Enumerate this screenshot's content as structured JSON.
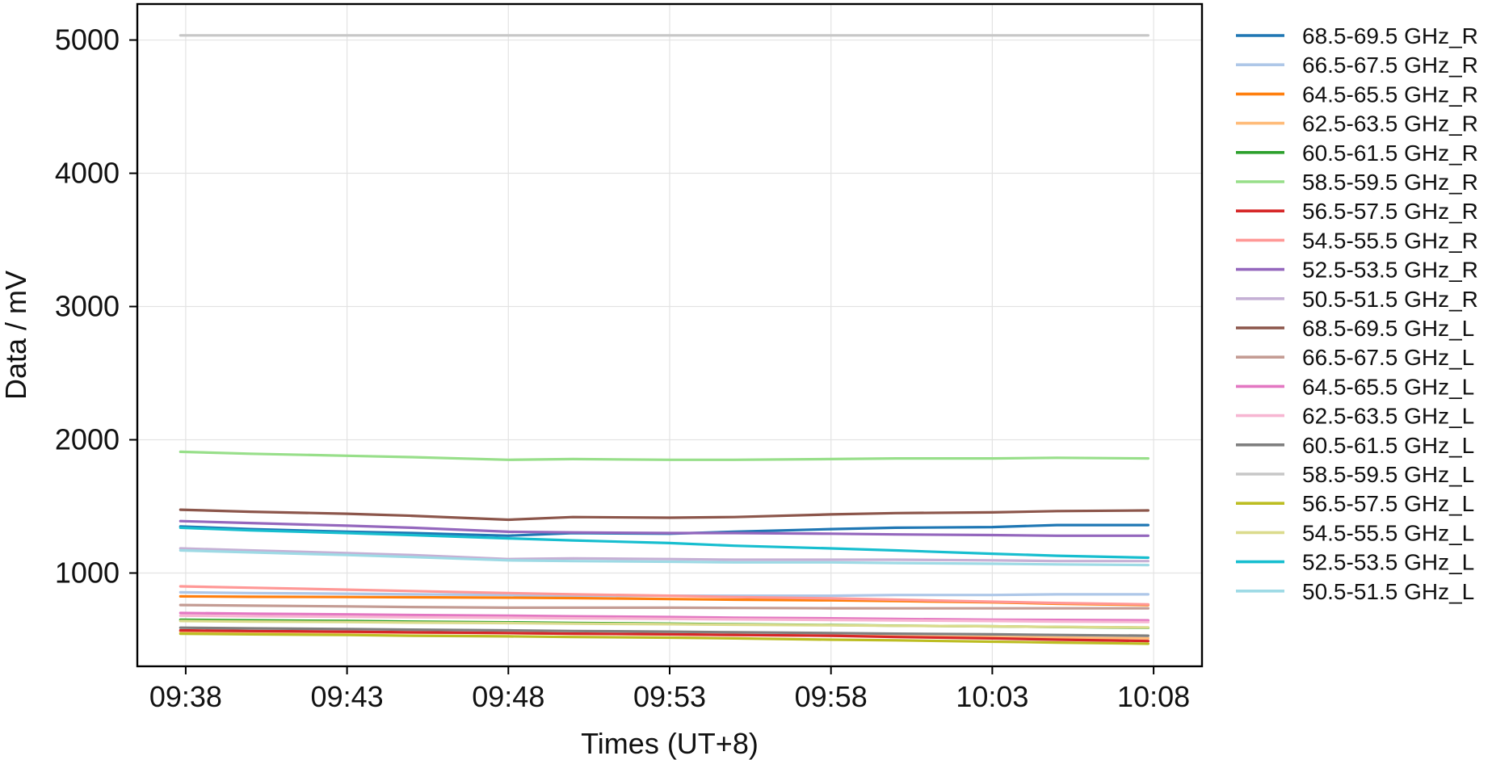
{
  "chart_data": {
    "type": "line",
    "title": "",
    "xlabel": "Times (UT+8)",
    "ylabel": "Data / mV",
    "xlim": [
      "09:36:30",
      "10:09:30"
    ],
    "ylim": [
      300,
      5270
    ],
    "grid": true,
    "legend_position": "outside-right",
    "x_ticks": [
      "09:38",
      "09:43",
      "09:48",
      "09:53",
      "09:58",
      "10:03",
      "10:08"
    ],
    "y_ticks": [
      1000,
      2000,
      3000,
      4000,
      5000
    ],
    "x": [
      "09:37:50",
      "09:40:00",
      "09:43:00",
      "09:45:00",
      "09:48:00",
      "09:50:00",
      "09:53:00",
      "09:55:00",
      "09:58:00",
      "10:00:00",
      "10:03:00",
      "10:05:00",
      "10:07:50"
    ],
    "series": [
      {
        "name": "68.5-69.5 GHz_R",
        "color": "#1f77b4",
        "values": [
          1350,
          1330,
          1310,
          1300,
          1280,
          1300,
          1295,
          1310,
          1330,
          1340,
          1345,
          1360,
          1360
        ]
      },
      {
        "name": "66.5-67.5 GHz_R",
        "color": "#aec7e8",
        "values": [
          855,
          850,
          845,
          840,
          835,
          830,
          830,
          830,
          830,
          835,
          835,
          840,
          840
        ]
      },
      {
        "name": "64.5-65.5 GHz_R",
        "color": "#ff7f0e",
        "values": [
          825,
          822,
          820,
          818,
          815,
          812,
          805,
          800,
          795,
          790,
          780,
          770,
          760
        ]
      },
      {
        "name": "62.5-63.5 GHz_R",
        "color": "#ffbb78",
        "values": [
          560,
          558,
          555,
          553,
          550,
          545,
          540,
          535,
          530,
          525,
          520,
          515,
          510
        ]
      },
      {
        "name": "60.5-61.5 GHz_R",
        "color": "#2ca02c",
        "values": [
          650,
          645,
          640,
          635,
          630,
          625,
          620,
          615,
          610,
          605,
          600,
          595,
          590
        ]
      },
      {
        "name": "58.5-59.5 GHz_R",
        "color": "#98df8a",
        "values": [
          1910,
          1895,
          1880,
          1870,
          1850,
          1855,
          1850,
          1850,
          1855,
          1860,
          1860,
          1865,
          1860
        ]
      },
      {
        "name": "56.5-57.5 GHz_R",
        "color": "#d62728",
        "values": [
          570,
          565,
          560,
          555,
          550,
          545,
          540,
          535,
          530,
          520,
          510,
          500,
          490
        ]
      },
      {
        "name": "54.5-55.5 GHz_R",
        "color": "#ff9896",
        "values": [
          900,
          890,
          875,
          865,
          850,
          840,
          830,
          820,
          810,
          800,
          785,
          775,
          765
        ]
      },
      {
        "name": "52.5-53.5 GHz_R",
        "color": "#9467bd",
        "values": [
          1390,
          1375,
          1355,
          1340,
          1310,
          1305,
          1300,
          1300,
          1295,
          1290,
          1285,
          1280,
          1280
        ]
      },
      {
        "name": "50.5-51.5 GHz_R",
        "color": "#c5b0d5",
        "values": [
          1185,
          1170,
          1150,
          1135,
          1105,
          1110,
          1105,
          1100,
          1100,
          1100,
          1095,
          1090,
          1090
        ]
      },
      {
        "name": "68.5-69.5 GHz_L",
        "color": "#8c564b",
        "values": [
          1475,
          1460,
          1445,
          1430,
          1400,
          1420,
          1415,
          1420,
          1440,
          1450,
          1455,
          1465,
          1470
        ]
      },
      {
        "name": "66.5-67.5 GHz_L",
        "color": "#c49c94",
        "values": [
          760,
          755,
          750,
          745,
          740,
          740,
          740,
          738,
          736,
          735,
          735,
          735,
          735
        ]
      },
      {
        "name": "64.5-65.5 GHz_L",
        "color": "#e377c2",
        "values": [
          700,
          695,
          690,
          685,
          680,
          675,
          670,
          665,
          660,
          655,
          650,
          648,
          645
        ]
      },
      {
        "name": "62.5-63.5 GHz_L",
        "color": "#f7b6d2",
        "values": [
          680,
          676,
          672,
          668,
          664,
          660,
          656,
          652,
          648,
          644,
          640,
          636,
          632
        ]
      },
      {
        "name": "60.5-61.5 GHz_L",
        "color": "#7f7f7f",
        "values": [
          590,
          585,
          580,
          575,
          570,
          565,
          560,
          555,
          550,
          545,
          540,
          535,
          530
        ]
      },
      {
        "name": "58.5-59.5 GHz_L",
        "color": "#c7c7c7",
        "values": [
          5035,
          5035,
          5035,
          5035,
          5035,
          5035,
          5035,
          5035,
          5035,
          5035,
          5035,
          5035,
          5035
        ]
      },
      {
        "name": "56.5-57.5 GHz_L",
        "color": "#bcbd22",
        "values": [
          545,
          540,
          535,
          530,
          525,
          520,
          515,
          510,
          500,
          495,
          485,
          478,
          470
        ]
      },
      {
        "name": "54.5-55.5 GHz_L",
        "color": "#dbdb8d",
        "values": [
          640,
          636,
          632,
          628,
          624,
          620,
          616,
          612,
          608,
          604,
          600,
          596,
          592
        ]
      },
      {
        "name": "52.5-53.5 GHz_L",
        "color": "#17becf",
        "values": [
          1340,
          1320,
          1300,
          1285,
          1260,
          1245,
          1225,
          1205,
          1185,
          1170,
          1145,
          1130,
          1115
        ]
      },
      {
        "name": "50.5-51.5 GHz_L",
        "color": "#9edae5",
        "values": [
          1170,
          1155,
          1135,
          1120,
          1095,
          1090,
          1085,
          1080,
          1080,
          1075,
          1070,
          1065,
          1060
        ]
      }
    ]
  }
}
